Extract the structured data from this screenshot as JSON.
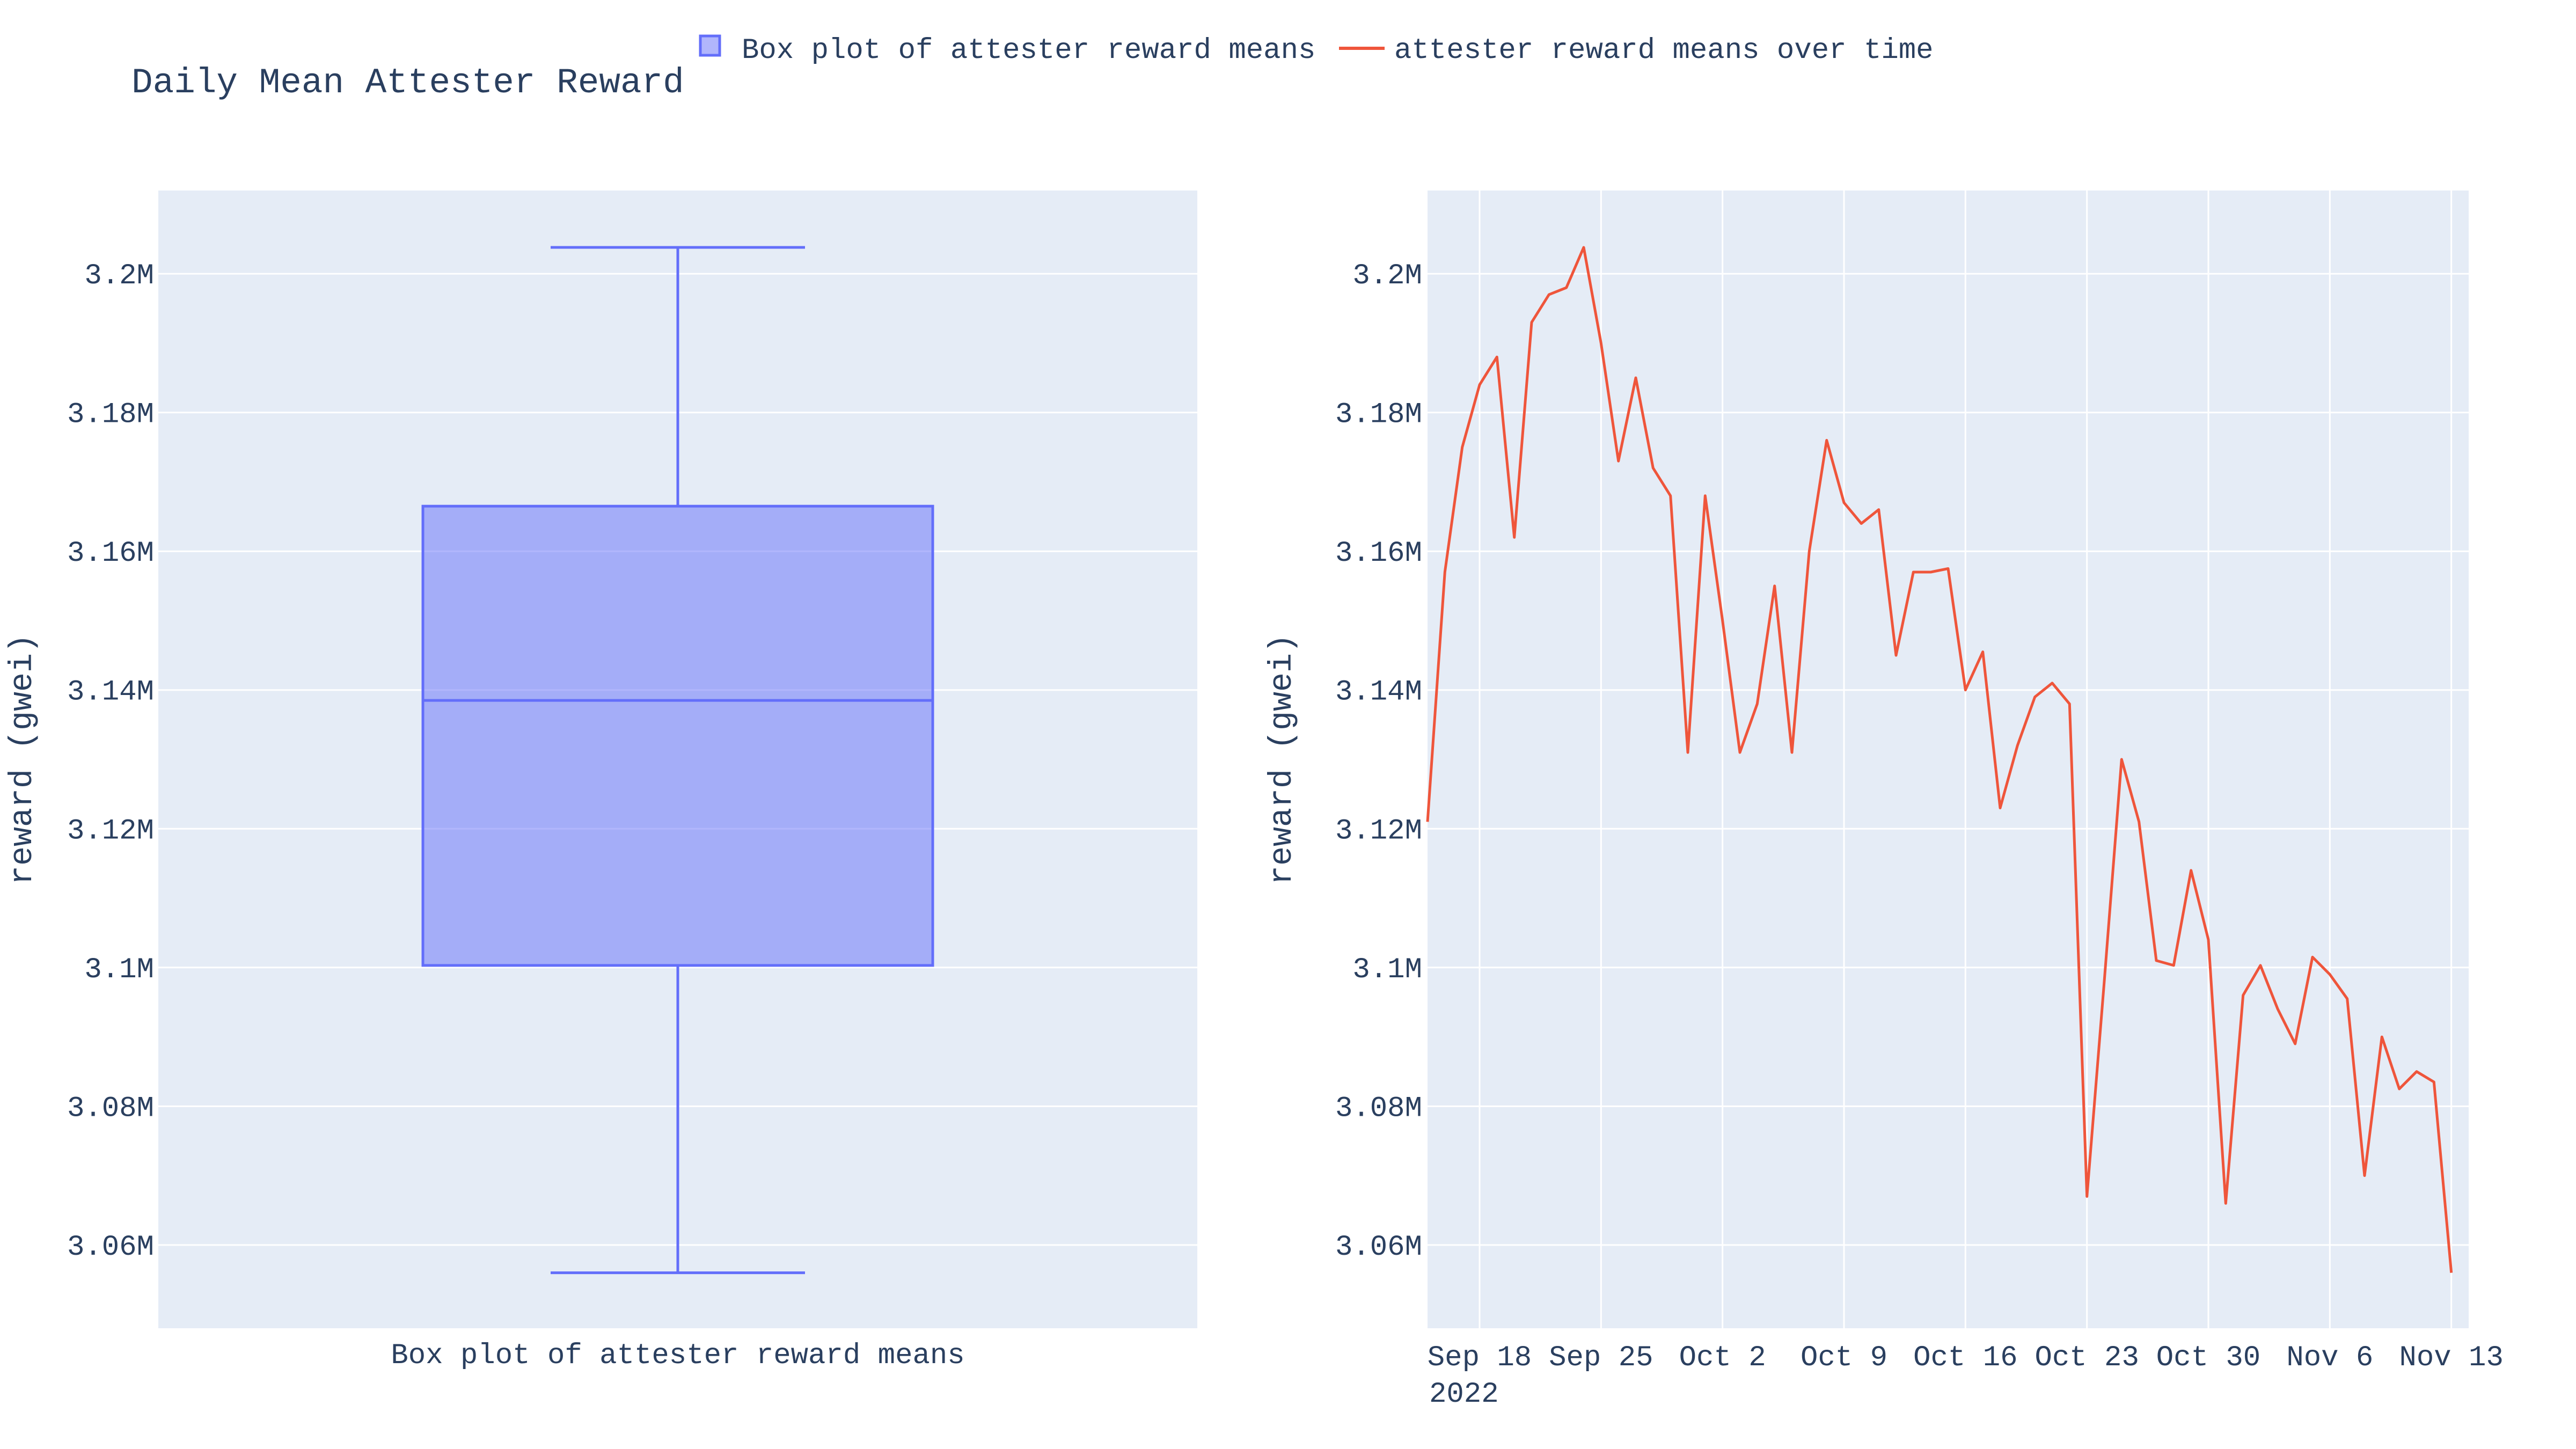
{
  "title": "Daily Mean Attester Reward",
  "legend": {
    "placement": "top-center",
    "items": [
      {
        "label": "Box plot of attester reward means",
        "symbol": "box",
        "color": "#636efa"
      },
      {
        "label": "attester reward means over time",
        "symbol": "line",
        "color": "#ef553b"
      }
    ]
  },
  "colors": {
    "plot_bg": "#e5ecf6",
    "grid": "#ffffff",
    "box_line": "#636efa",
    "box_fill": "rgba(99,110,250,0.5)",
    "line": "#ef553b",
    "text": "#2a3f5f"
  },
  "chart_data": [
    {
      "type": "box",
      "series_name": "Box plot of attester reward means",
      "ylabel": "reward (gwei)",
      "category_label": "Box plot of attester reward means",
      "stats": {
        "min": 3056000,
        "q1": 3100300,
        "median": 3138500,
        "q3": 3166500,
        "max": 3203800
      },
      "ylim": [
        3048000,
        3212000
      ],
      "yticks": [
        3060000,
        3080000,
        3100000,
        3120000,
        3140000,
        3160000,
        3180000,
        3200000
      ],
      "ytick_labels": [
        "3.06M",
        "3.08M",
        "3.1M",
        "3.12M",
        "3.14M",
        "3.16M",
        "3.18M",
        "3.2M"
      ],
      "grid": true
    },
    {
      "type": "line",
      "series_name": "attester reward means over time",
      "ylabel": "reward (gwei)",
      "x_start": "2022-09-15",
      "xlim": [
        "2022-09-15",
        "2022-11-14"
      ],
      "xticks": [
        "2022-09-18",
        "2022-09-25",
        "2022-10-02",
        "2022-10-09",
        "2022-10-16",
        "2022-10-23",
        "2022-10-30",
        "2022-11-06",
        "2022-11-13"
      ],
      "xtick_labels": [
        "Sep 18",
        "Sep 25",
        "Oct 2",
        "Oct 9",
        "Oct 16",
        "Oct 23",
        "Oct 30",
        "Nov 6",
        "Nov 13"
      ],
      "xtick_year": "2022",
      "ylim": [
        3048000,
        3212000
      ],
      "yticks": [
        3060000,
        3080000,
        3100000,
        3120000,
        3140000,
        3160000,
        3180000,
        3200000
      ],
      "ytick_labels": [
        "3.06M",
        "3.08M",
        "3.1M",
        "3.12M",
        "3.14M",
        "3.16M",
        "3.18M",
        "3.2M"
      ],
      "grid": true,
      "values": [
        3121000,
        3157000,
        3175000,
        3184000,
        3188000,
        3162000,
        3193000,
        3197000,
        3198000,
        3203800,
        3190000,
        3173000,
        3185000,
        3172000,
        3168000,
        3131000,
        3168000,
        3150000,
        3131000,
        3138000,
        3155000,
        3131000,
        3160000,
        3176000,
        3167000,
        3164000,
        3166000,
        3145000,
        3157000,
        3157000,
        3157500,
        3140000,
        3145500,
        3123000,
        3132000,
        3139000,
        3141000,
        3138000,
        3067000,
        3098000,
        3130000,
        3121000,
        3101000,
        3100300,
        3114000,
        3104000,
        3066000,
        3096000,
        3100300,
        3094000,
        3089000,
        3101500,
        3099000,
        3095500,
        3070000,
        3090000,
        3082500,
        3085000,
        3083500,
        3056000
      ]
    }
  ]
}
